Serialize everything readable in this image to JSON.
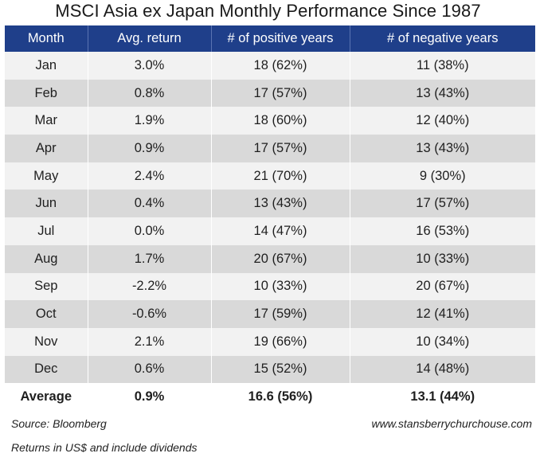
{
  "chart_data": {
    "type": "table",
    "title": "MSCI Asia ex Japan Monthly Performance Since 1987",
    "columns": [
      "Month",
      "Avg. return",
      "# of positive years",
      "# of negative years"
    ],
    "rows": [
      [
        "Jan",
        "3.0%",
        "18 (62%)",
        "11 (38%)"
      ],
      [
        "Feb",
        "0.8%",
        "17 (57%)",
        "13 (43%)"
      ],
      [
        "Mar",
        "1.9%",
        "18 (60%)",
        "12 (40%)"
      ],
      [
        "Apr",
        "0.9%",
        "17 (57%)",
        "13 (43%)"
      ],
      [
        "May",
        "2.4%",
        "21 (70%)",
        "9 (30%)"
      ],
      [
        "Jun",
        "0.4%",
        "13 (43%)",
        "17 (57%)"
      ],
      [
        "Jul",
        "0.0%",
        "14 (47%)",
        "16 (53%)"
      ],
      [
        "Aug",
        "1.7%",
        "20 (67%)",
        "10 (33%)"
      ],
      [
        "Sep",
        "-2.2%",
        "10 (33%)",
        "20 (67%)"
      ],
      [
        "Oct",
        "-0.6%",
        "17 (59%)",
        "12 (41%)"
      ],
      [
        "Nov",
        "2.1%",
        "19 (66%)",
        "10 (34%)"
      ],
      [
        "Dec",
        "0.6%",
        "15 (52%)",
        "14 (48%)"
      ]
    ],
    "total_row": [
      "Average",
      "0.9%",
      "16.6 (56%)",
      "13.1 (44%)"
    ]
  },
  "footer": {
    "source": "Source: Bloomberg",
    "note": "Returns in US$ and include dividends",
    "website": "www.stansberrychurchouse.com"
  },
  "colors": {
    "header_bg": "#1f3f8a",
    "header_text": "#ffffff",
    "row_light": "#f2f2f2",
    "row_dark": "#d9d9d9"
  }
}
